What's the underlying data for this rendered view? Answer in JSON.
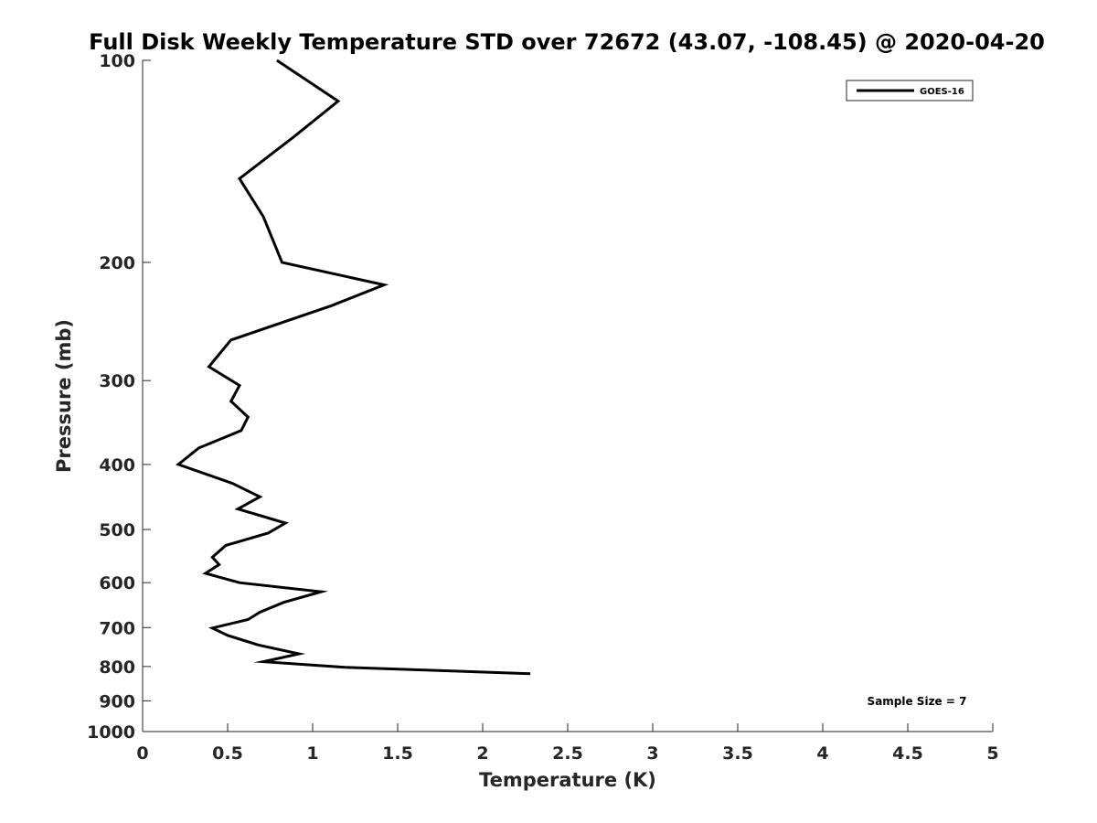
{
  "chart_data": {
    "type": "line",
    "title": "Full Disk Weekly Temperature STD over 72672 (43.07, -108.45) @ 2020-04-20",
    "xlabel": "Temperature (K)",
    "ylabel": "Pressure (mb)",
    "xlim": [
      0,
      5
    ],
    "ylim": [
      100,
      1000
    ],
    "y_scale": "log",
    "y_reversed": true,
    "grid": false,
    "legend_position": "top-right",
    "x_ticks": [
      0,
      0.5,
      1,
      1.5,
      2,
      2.5,
      3,
      3.5,
      4,
      4.5,
      5
    ],
    "x_tick_labels": [
      "0",
      "0.5",
      "1",
      "1.5",
      "2",
      "2.5",
      "3",
      "3.5",
      "4",
      "4.5",
      "5"
    ],
    "y_ticks": [
      100,
      200,
      300,
      400,
      500,
      600,
      700,
      800,
      900,
      1000
    ],
    "y_tick_labels": [
      "100",
      "200",
      "300",
      "400",
      "500",
      "600",
      "700",
      "800",
      "900",
      "1000"
    ],
    "series": [
      {
        "name": "GOES-16",
        "color": "#000000",
        "x": [
          0.79,
          1.15,
          0.89,
          0.57,
          0.71,
          0.82,
          1.42,
          1.11,
          0.52,
          0.39,
          0.57,
          0.52,
          0.62,
          0.58,
          0.33,
          0.21,
          0.53,
          0.69,
          0.56,
          0.84,
          0.74,
          0.49,
          0.41,
          0.45,
          0.37,
          0.57,
          1.05,
          0.83,
          0.69,
          0.62,
          0.41,
          0.5,
          0.68,
          0.92,
          0.71,
          1.19,
          2.28
        ],
        "y": [
          100,
          115,
          130,
          150,
          171,
          200,
          216,
          232,
          261,
          286,
          305,
          322,
          340,
          356,
          378,
          400,
          427,
          447,
          466,
          489,
          506,
          528,
          550,
          564,
          581,
          600,
          619,
          642,
          664,
          681,
          701,
          719,
          743,
          766,
          787,
          802,
          820
        ]
      }
    ],
    "annotations": [
      "Sample Size = 7"
    ]
  }
}
